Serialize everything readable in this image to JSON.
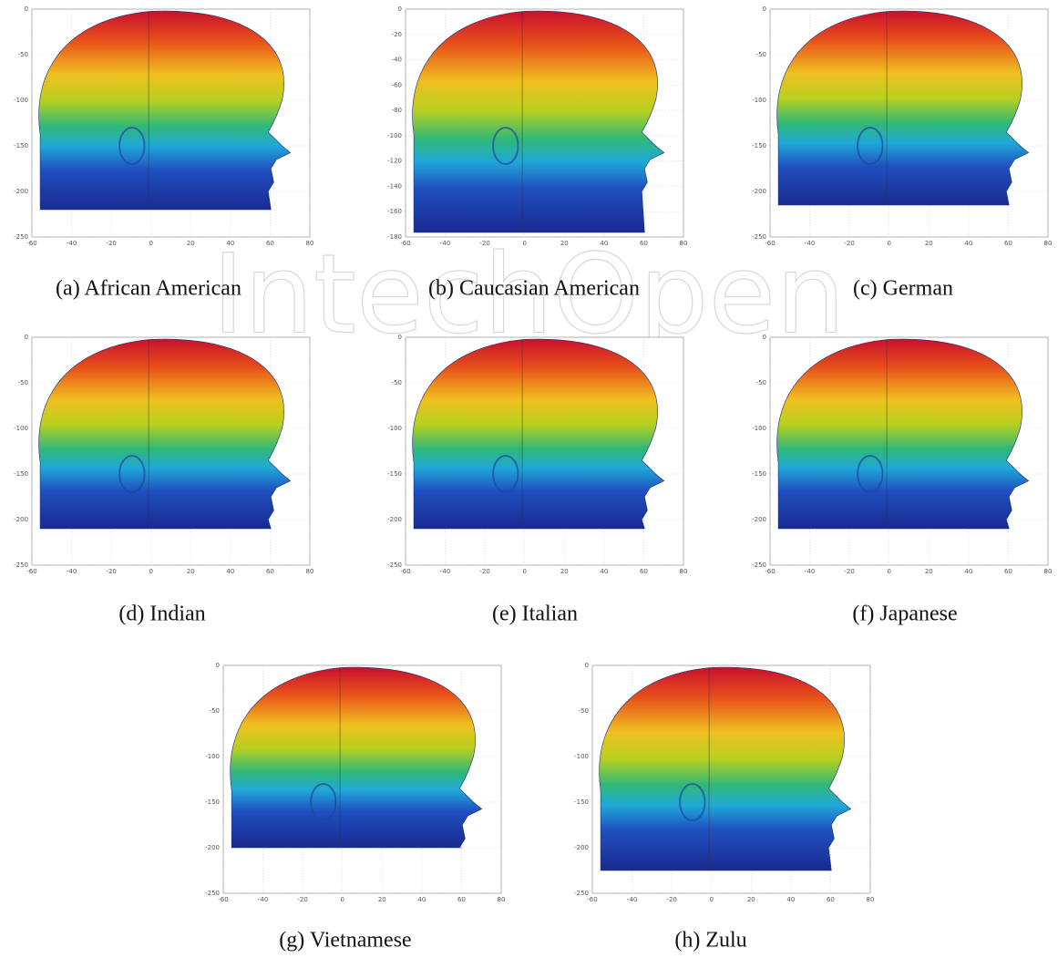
{
  "watermark": "IntechOpen",
  "figure": {
    "panels": [
      {
        "caption": "(a)  African American",
        "xticks": [
          -60,
          -40,
          -20,
          0,
          20,
          40,
          60,
          80
        ],
        "yticks": [
          0,
          -50,
          -100,
          -150,
          -200,
          -250
        ]
      },
      {
        "caption": "(b)  Caucasian American",
        "xticks": [
          -60,
          -40,
          -20,
          0,
          20,
          40,
          60,
          80
        ],
        "yticks": [
          0,
          -20,
          -40,
          -60,
          -80,
          -100,
          -120,
          -140,
          -160,
          -180
        ]
      },
      {
        "caption": "(c)  German",
        "xticks": [
          -60,
          -40,
          -20,
          0,
          20,
          40,
          60,
          80
        ],
        "yticks": [
          0,
          -50,
          -100,
          -150,
          -200,
          -250
        ]
      },
      {
        "caption": "(d)  Indian",
        "xticks": [
          -60,
          -40,
          -20,
          0,
          20,
          40,
          60,
          80
        ],
        "yticks": [
          0,
          -50,
          -100,
          -150,
          -200,
          -250
        ]
      },
      {
        "caption": "(e)  Italian",
        "xticks": [
          -60,
          -40,
          -20,
          0,
          20,
          40,
          60,
          80
        ],
        "yticks": [
          0,
          -50,
          -100,
          -150,
          -200,
          -250
        ]
      },
      {
        "caption": "(f)  Japanese",
        "xticks": [
          -60,
          -40,
          -20,
          0,
          20,
          40,
          60,
          80
        ],
        "yticks": [
          0,
          -50,
          -100,
          -150,
          -200,
          -250
        ]
      },
      {
        "caption": "(g)  Vietnamese",
        "xticks": [
          -60,
          -40,
          -20,
          0,
          20,
          40,
          60,
          80
        ],
        "yticks": [
          0,
          -50,
          -100,
          -150,
          -200,
          -250
        ]
      },
      {
        "caption": "(h)  Zulu",
        "xticks": [
          -60,
          -40,
          -20,
          0,
          20,
          40,
          60,
          80
        ],
        "yticks": [
          0,
          -50,
          -100,
          -150,
          -200,
          -250
        ]
      }
    ]
  }
}
